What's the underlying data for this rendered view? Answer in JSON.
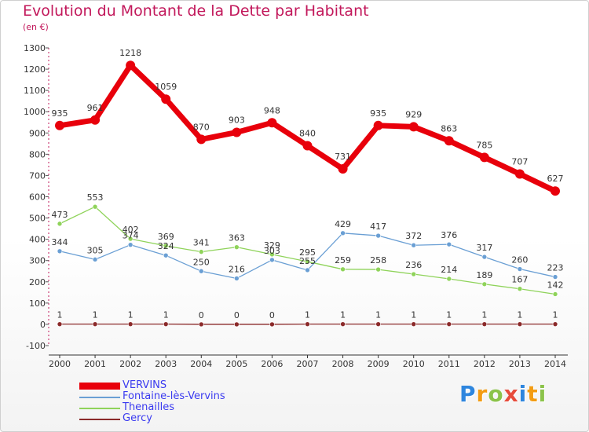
{
  "header": {
    "title": "Evolution du Montant de la Dette par Habitant",
    "subtitle": "(en €)"
  },
  "logo": {
    "letters": [
      "P",
      "r",
      "o",
      "x",
      "i",
      "t",
      "i"
    ],
    "colors": [
      "#2e86de",
      "#f39c12",
      "#8bc34a",
      "#e74c3c",
      "#2e86de",
      "#f39c12",
      "#8bc34a"
    ]
  },
  "chart_data": {
    "type": "line",
    "x": [
      "2000",
      "2001",
      "2002",
      "2003",
      "2004",
      "2005",
      "2006",
      "2007",
      "2008",
      "2009",
      "2010",
      "2011",
      "2012",
      "2013",
      "2014"
    ],
    "ylim": [
      -100,
      1300
    ],
    "yticks": [
      "-100",
      "0",
      "100",
      "200",
      "300",
      "400",
      "500",
      "600",
      "700",
      "800",
      "900",
      "1000",
      "1100",
      "1200",
      "1300"
    ],
    "grid": false,
    "legend_position": "bottom-left",
    "series": [
      {
        "name": "VERVINS",
        "color": "#e8000b",
        "values": [
          935,
          961,
          1218,
          1059,
          870,
          903,
          948,
          840,
          731,
          935,
          929,
          863,
          785,
          707,
          627
        ],
        "labels": [
          "935",
          "961",
          "1218",
          "1059",
          "870",
          "903",
          "948",
          "840",
          "731",
          "935",
          "929",
          "863",
          "785",
          "707",
          "627"
        ]
      },
      {
        "name": "Fontaine-lès-Vervins",
        "color": "#6a9fd4",
        "values": [
          344,
          305,
          374,
          324,
          250,
          216,
          303,
          255,
          429,
          417,
          372,
          376,
          317,
          260,
          223
        ],
        "labels": [
          "344",
          "305",
          "374",
          "324",
          "250",
          "216",
          "303",
          "255",
          "429",
          "417",
          "372",
          "376",
          "317",
          "260",
          "223"
        ]
      },
      {
        "name": "Thenailles",
        "color": "#8fd35a",
        "values": [
          473,
          553,
          402,
          369,
          341,
          363,
          329,
          295,
          259,
          258,
          236,
          214,
          189,
          167,
          142
        ],
        "labels": [
          "473",
          "553",
          "402",
          "369",
          "341",
          "363",
          "329",
          "295",
          "259",
          "258",
          "236",
          "214",
          "189",
          "167",
          "142"
        ]
      },
      {
        "name": "Gercy",
        "color": "#8b2a2a",
        "values": [
          1,
          1,
          1,
          1,
          0,
          0,
          0,
          1,
          1,
          1,
          1,
          1,
          1,
          1,
          1
        ],
        "labels": [
          "1",
          "1",
          "1",
          "1",
          "0",
          "0",
          "0",
          "1",
          "1",
          "1",
          "1",
          "1",
          "1",
          "1",
          "1"
        ]
      }
    ]
  }
}
